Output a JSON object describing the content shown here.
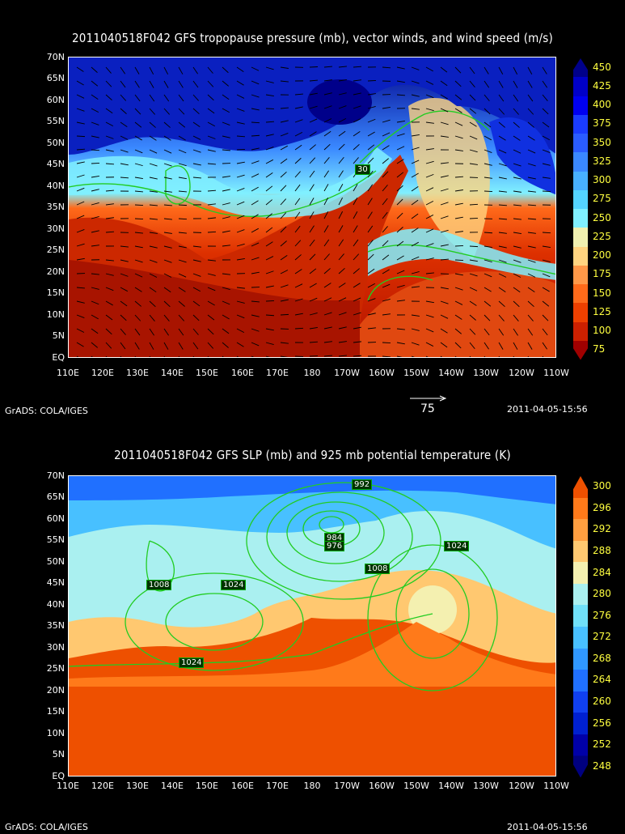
{
  "top": {
    "title": "2011040518F042 GFS tropopause pressure (mb), vector winds, and wind speed (m/s)",
    "lat_labels": [
      "70N",
      "65N",
      "60N",
      "55N",
      "50N",
      "45N",
      "40N",
      "35N",
      "30N",
      "25N",
      "20N",
      "15N",
      "10N",
      "5N",
      "EQ"
    ],
    "lon_labels": [
      "110E",
      "120E",
      "130E",
      "140E",
      "150E",
      "160E",
      "170E",
      "180",
      "170W",
      "160W",
      "150W",
      "140W",
      "130W",
      "120W",
      "110W"
    ],
    "colorbar": [
      "450",
      "425",
      "400",
      "375",
      "350",
      "325",
      "300",
      "275",
      "250",
      "225",
      "200",
      "175",
      "150",
      "125",
      "100",
      "75"
    ],
    "colorbar_colors": [
      "#00008a",
      "#0000c8",
      "#0000f0",
      "#1a3cff",
      "#2a5cff",
      "#3a88ff",
      "#48b0ff",
      "#54d4ff",
      "#80f0ff",
      "#f0f0b0",
      "#ffd480",
      "#ff9848",
      "#ff6a1a",
      "#ee4000",
      "#cc2000",
      "#a00000"
    ],
    "contour_label": "30",
    "vector_ref": "75",
    "footer_left": "GrADS: COLA/IGES",
    "footer_right": "2011-04-05-15:56"
  },
  "bottom": {
    "title": "2011040518F042 GFS SLP (mb) and 925 mb potential temperature (K)",
    "lat_labels": [
      "70N",
      "65N",
      "60N",
      "55N",
      "50N",
      "45N",
      "40N",
      "35N",
      "30N",
      "25N",
      "20N",
      "15N",
      "10N",
      "5N",
      "EQ"
    ],
    "lon_labels": [
      "110E",
      "120E",
      "130E",
      "140E",
      "150E",
      "160E",
      "170E",
      "180",
      "170W",
      "160W",
      "150W",
      "140W",
      "130W",
      "120W",
      "110W"
    ],
    "colorbar": [
      "300",
      "296",
      "292",
      "288",
      "284",
      "280",
      "276",
      "272",
      "268",
      "264",
      "260",
      "256",
      "252",
      "248"
    ],
    "colorbar_colors": [
      "#ee5000",
      "#ff7a1a",
      "#ff9e40",
      "#ffc870",
      "#f4f0b0",
      "#aaf0f0",
      "#70e0f8",
      "#48c0ff",
      "#3098ff",
      "#2070ff",
      "#1040f0",
      "#0020d0",
      "#0000a8",
      "#000080"
    ],
    "contour_labels": [
      "992",
      "984",
      "976",
      "1008",
      "1024",
      "1008",
      "1024",
      "1024"
    ],
    "footer_left": "GrADS: COLA/IGES",
    "footer_right": "2011-04-05-15:56"
  }
}
